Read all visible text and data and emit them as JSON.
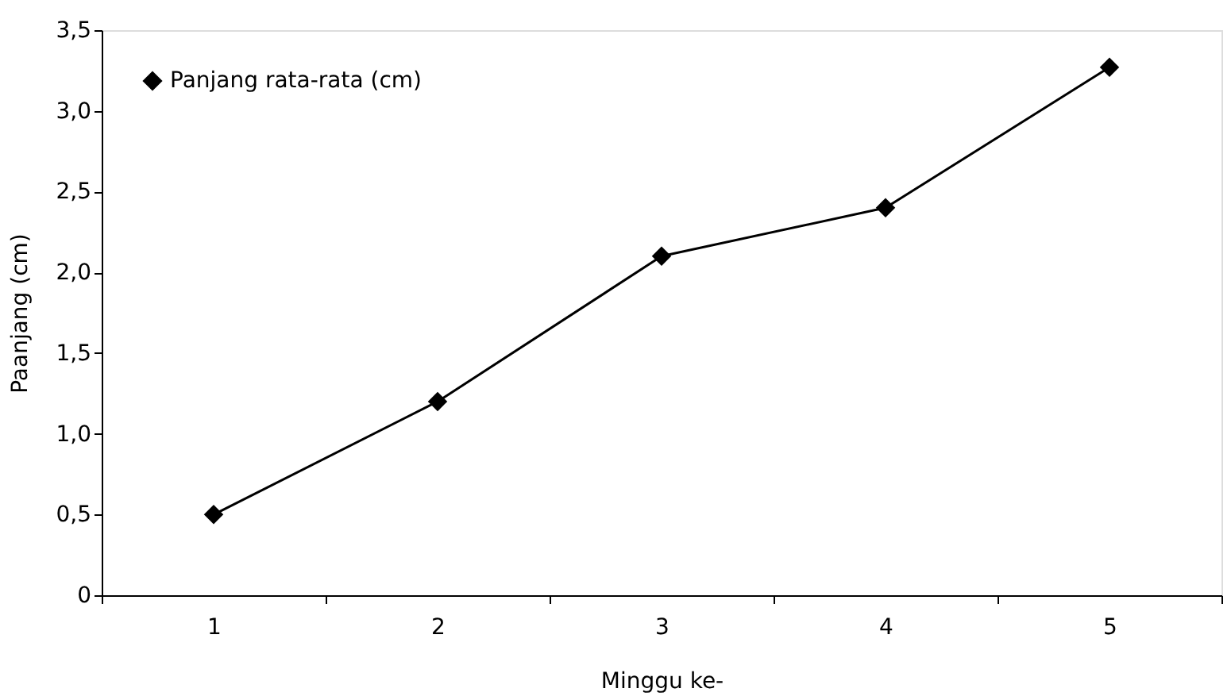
{
  "chart_data": {
    "type": "line",
    "xlabel": "Minggu ke-",
    "ylabel": "Paanjang (cm)",
    "categories": [
      "1",
      "2",
      "3",
      "4",
      "5"
    ],
    "series": [
      {
        "name": "Panjang rata-rata (cm)",
        "color": "#000000",
        "values": [
          0.5,
          1.2,
          2.1,
          2.4,
          3.27
        ]
      }
    ],
    "ylim": [
      0,
      3.5
    ],
    "yticks": [
      0,
      {
        "value": 0.5,
        "label": "0,5"
      },
      {
        "value": 1,
        "label": "1,0"
      },
      {
        "value": 1.5,
        "label": "1,5"
      },
      {
        "value": 2,
        "label": "2,0"
      },
      {
        "value": 2.5,
        "label": "2,5"
      },
      {
        "value": 3,
        "label": "3,0"
      },
      {
        "value": 3.5,
        "label": "3,5"
      }
    ],
    "marker": "diamond",
    "line_style": "solid",
    "grid": false,
    "legend": "top left"
  }
}
